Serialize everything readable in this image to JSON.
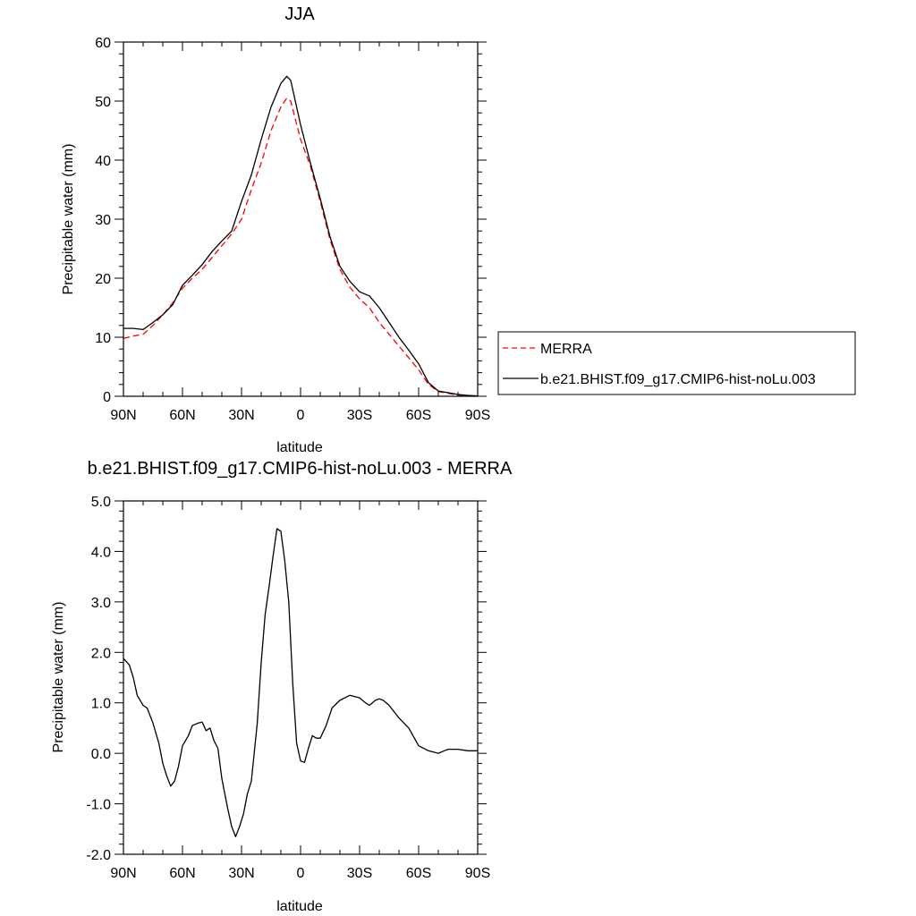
{
  "chart_data": [
    {
      "type": "line",
      "title": "JJA",
      "xlabel": "latitude",
      "ylabel": "Precipitable water (mm)",
      "xlim": [
        90,
        -90
      ],
      "ylim": [
        0,
        60
      ],
      "xticks": [
        90,
        60,
        30,
        0,
        -30,
        -60,
        -90
      ],
      "xtick_labels": [
        "90N",
        "60N",
        "30N",
        "0",
        "30S",
        "60S",
        "90S"
      ],
      "yticks": [
        0,
        10,
        20,
        30,
        40,
        50,
        60
      ],
      "ytick_labels": [
        "0",
        "10",
        "20",
        "30",
        "40",
        "50",
        "60"
      ],
      "grid": false,
      "legend_position": "right",
      "series": [
        {
          "name": "MERRA",
          "color": "#ff0000",
          "style": "dashed",
          "x": [
            90,
            85,
            80,
            75,
            70,
            65,
            60,
            55,
            50,
            45,
            40,
            35,
            30,
            25,
            20,
            15,
            10,
            7,
            5,
            0,
            -5,
            -10,
            -15,
            -20,
            -25,
            -30,
            -35,
            -40,
            -45,
            -50,
            -55,
            -60,
            -65,
            -70,
            -75,
            -80,
            -85,
            -90
          ],
          "y": [
            9.8,
            10.2,
            10.5,
            12,
            13.8,
            15.8,
            18.3,
            20,
            21.5,
            23.5,
            25.5,
            27.5,
            30,
            35,
            39.5,
            45,
            49,
            50.5,
            50,
            43.5,
            39,
            33,
            26.5,
            21.5,
            18.5,
            16.5,
            15,
            12.5,
            10.5,
            8.5,
            6.5,
            4.5,
            2,
            0.8,
            0.5,
            0.2,
            0.1,
            0.05
          ]
        },
        {
          "name": "b.e21.BHIST.f09_g17.CMIP6-hist-noLu.003",
          "color": "#000000",
          "style": "solid",
          "x": [
            90,
            85,
            80,
            75,
            70,
            65,
            60,
            55,
            50,
            45,
            40,
            35,
            30,
            25,
            20,
            15,
            10,
            7,
            5,
            0,
            -5,
            -10,
            -15,
            -20,
            -25,
            -30,
            -35,
            -40,
            -45,
            -50,
            -55,
            -60,
            -65,
            -70,
            -75,
            -80,
            -85,
            -90
          ],
          "y": [
            11.5,
            11.5,
            11.3,
            12.5,
            13.8,
            15.5,
            18.8,
            20.5,
            22.3,
            24.5,
            26.3,
            28,
            33,
            37.5,
            43.5,
            49,
            53,
            54.2,
            53.5,
            46,
            39.5,
            33.5,
            27,
            22,
            19.5,
            17.7,
            17,
            15,
            12.5,
            10,
            7.8,
            5.5,
            2.3,
            0.9,
            0.6,
            0.3,
            0.15,
            0.05
          ]
        }
      ]
    },
    {
      "type": "line",
      "title": "b.e21.BHIST.f09_g17.CMIP6-hist-noLu.003 - MERRA",
      "xlabel": "latitude",
      "ylabel": "Precipitable water (mm)",
      "xlim": [
        90,
        -90
      ],
      "ylim": [
        -2.0,
        5.0
      ],
      "xticks": [
        90,
        60,
        30,
        0,
        -30,
        -60,
        -90
      ],
      "xtick_labels": [
        "90N",
        "60N",
        "30N",
        "0",
        "30S",
        "60S",
        "90S"
      ],
      "yticks": [
        -2,
        -1,
        0,
        1,
        2,
        3,
        4,
        5
      ],
      "ytick_labels": [
        "-2.0",
        "-1.0",
        "0.0",
        "1.0",
        "2.0",
        "3.0",
        "4.0",
        "5.0"
      ],
      "grid": false,
      "series": [
        {
          "color": "#000000",
          "style": "solid",
          "x": [
            90,
            87,
            85,
            83,
            80,
            78,
            75,
            72,
            70,
            68,
            66,
            64,
            62,
            60,
            57,
            55,
            52,
            50,
            48,
            46,
            44,
            42,
            40,
            37,
            35,
            33,
            31,
            29,
            27,
            25,
            22,
            20,
            18,
            16,
            14,
            12,
            10,
            8,
            6,
            4,
            2,
            0,
            -2,
            -4,
            -6,
            -8,
            -10,
            -13,
            -16,
            -20,
            -25,
            -30,
            -33,
            -35,
            -38,
            -40,
            -42,
            -45,
            -48,
            -50,
            -55,
            -60,
            -65,
            -70,
            -73,
            -75,
            -78,
            -80,
            -85,
            -90
          ],
          "y": [
            1.88,
            1.75,
            1.5,
            1.15,
            0.95,
            0.9,
            0.6,
            0.2,
            -0.2,
            -0.45,
            -0.65,
            -0.55,
            -0.25,
            0.15,
            0.35,
            0.55,
            0.6,
            0.62,
            0.45,
            0.5,
            0.25,
            0.1,
            -0.5,
            -1.1,
            -1.45,
            -1.65,
            -1.45,
            -1.2,
            -0.8,
            -0.55,
            0.6,
            1.8,
            2.75,
            3.3,
            3.9,
            4.45,
            4.4,
            3.8,
            3.0,
            1.4,
            0.2,
            -0.15,
            -0.18,
            0.1,
            0.35,
            0.3,
            0.3,
            0.55,
            0.9,
            1.05,
            1.15,
            1.1,
            1.0,
            0.95,
            1.05,
            1.08,
            1.05,
            0.95,
            0.8,
            0.7,
            0.5,
            0.15,
            0.05,
            0.0,
            0.05,
            0.08,
            0.08,
            0.08,
            0.05,
            0.05
          ]
        }
      ]
    }
  ]
}
